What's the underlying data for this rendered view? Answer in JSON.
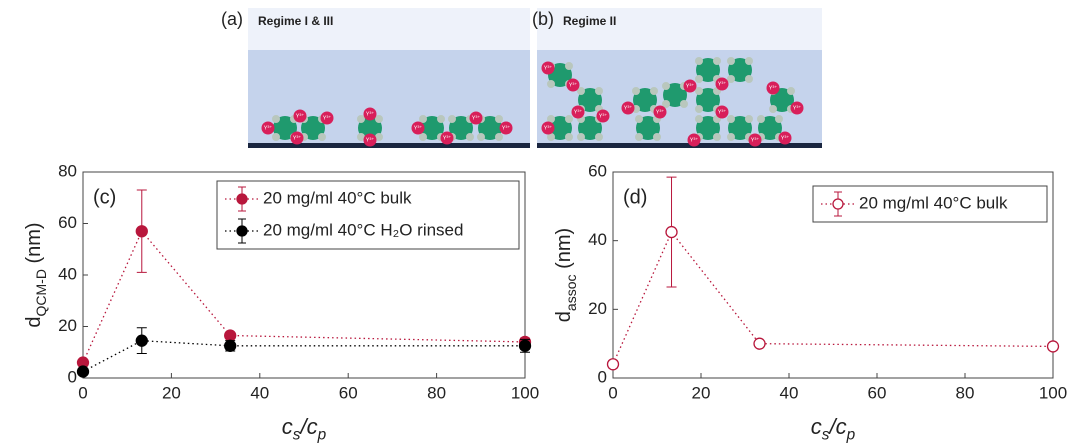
{
  "schematic": {
    "panels": [
      {
        "label": "(a)",
        "title": "Regime I & III"
      },
      {
        "label": "(b)",
        "title": "Regime II"
      }
    ],
    "ion_label": "Y³⁺"
  },
  "chart_data": [
    {
      "type": "scatter",
      "annotation": "(c)",
      "xlabel": [
        {
          "text": "c"
        },
        {
          "text": "s",
          "sub": true
        },
        {
          "text": "/c"
        },
        {
          "text": "p",
          "sub": true
        }
      ],
      "ylabel": [
        {
          "text": "d"
        },
        {
          "text": "QCM-D",
          "sub": true
        },
        {
          "text": " (nm)"
        }
      ],
      "x": [
        0,
        13.3,
        33.3,
        100
      ],
      "series": [
        {
          "name": "20 mg/ml 40°C bulk",
          "color": "#b8173c",
          "marker": "filled",
          "values": [
            6,
            57,
            16.5,
            14
          ],
          "errors": [
            1,
            16,
            1,
            1.5
          ]
        },
        {
          "name": "20 mg/ml 40°C H₂O rinsed",
          "color": "#000000",
          "marker": "filled",
          "values": [
            2.5,
            14.5,
            12.5,
            12.5
          ],
          "errors": [
            0.5,
            5,
            2,
            2.5
          ]
        }
      ],
      "xlim": [
        0,
        100
      ],
      "xticks": [
        0,
        20,
        40,
        60,
        80,
        100
      ],
      "ylim": [
        0,
        80
      ],
      "yticks": [
        0,
        20,
        40,
        60,
        80
      ]
    },
    {
      "type": "scatter",
      "annotation": "(d)",
      "xlabel": [
        {
          "text": "c"
        },
        {
          "text": "s",
          "sub": true
        },
        {
          "text": "/c"
        },
        {
          "text": "p",
          "sub": true
        }
      ],
      "ylabel": [
        {
          "text": "d"
        },
        {
          "text": "assoc",
          "sub": true
        },
        {
          "text": " (nm)"
        }
      ],
      "x": [
        0,
        13.3,
        33.3,
        100
      ],
      "series": [
        {
          "name": "20 mg/ml 40°C bulk",
          "color": "#b8173c",
          "marker": "open",
          "values": [
            4,
            42.5,
            10,
            9.2
          ],
          "errors": [
            1,
            16,
            0.8,
            0.8
          ]
        }
      ],
      "xlim": [
        0,
        100
      ],
      "xticks": [
        0,
        20,
        40,
        60,
        80,
        100
      ],
      "ylim": [
        0,
        60
      ],
      "yticks": [
        0,
        20,
        40,
        60
      ]
    }
  ]
}
